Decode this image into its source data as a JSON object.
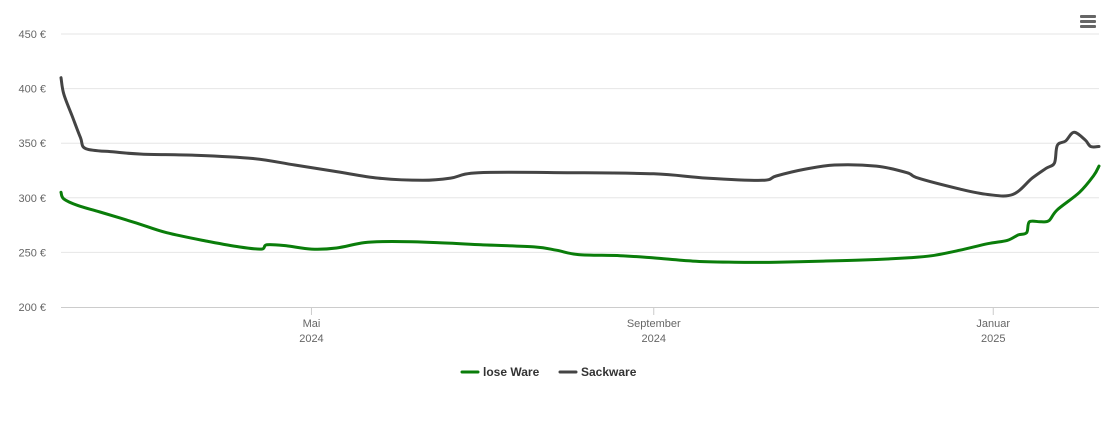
{
  "chart_data": {
    "type": "line",
    "title": "",
    "xlabel": "",
    "ylabel": "",
    "ylim": [
      200,
      450
    ],
    "y_ticks": [
      {
        "value": 200,
        "label": "200 €"
      },
      {
        "value": 250,
        "label": "250 €"
      },
      {
        "value": 300,
        "label": "300 €"
      },
      {
        "value": 350,
        "label": "350 €"
      },
      {
        "value": 400,
        "label": "400 €"
      },
      {
        "value": 450,
        "label": "450 €"
      }
    ],
    "x_range": [
      "2024-02-01",
      "2025-02-08"
    ],
    "x_ticks": [
      {
        "date": "2024-05-01",
        "line1": "Mai",
        "line2": "2024"
      },
      {
        "date": "2024-09-01",
        "line1": "September",
        "line2": "2024"
      },
      {
        "date": "2025-01-01",
        "line1": "Januar",
        "line2": "2025"
      }
    ],
    "grid": true,
    "legend_position": "bottom-center",
    "series": [
      {
        "name": "lose Ware",
        "color": "#0a7d0a",
        "points": [
          [
            "2024-02-01",
            305
          ],
          [
            "2024-02-02",
            299
          ],
          [
            "2024-02-07",
            293
          ],
          [
            "2024-02-15",
            287
          ],
          [
            "2024-02-28",
            277
          ],
          [
            "2024-03-10",
            268
          ],
          [
            "2024-03-25",
            260
          ],
          [
            "2024-04-05",
            255
          ],
          [
            "2024-04-13",
            253
          ],
          [
            "2024-04-15",
            257
          ],
          [
            "2024-04-22",
            256
          ],
          [
            "2024-05-01",
            253
          ],
          [
            "2024-05-10",
            254
          ],
          [
            "2024-05-20",
            259
          ],
          [
            "2024-05-30",
            260
          ],
          [
            "2024-06-15",
            259
          ],
          [
            "2024-07-01",
            257
          ],
          [
            "2024-07-20",
            255
          ],
          [
            "2024-07-28",
            252
          ],
          [
            "2024-08-05",
            248
          ],
          [
            "2024-08-20",
            247
          ],
          [
            "2024-09-01",
            245
          ],
          [
            "2024-09-15",
            242
          ],
          [
            "2024-09-30",
            241
          ],
          [
            "2024-10-15",
            241
          ],
          [
            "2024-11-01",
            242
          ],
          [
            "2024-11-15",
            243
          ],
          [
            "2024-12-01",
            245
          ],
          [
            "2024-12-10",
            247
          ],
          [
            "2024-12-20",
            252
          ],
          [
            "2024-12-30",
            258
          ],
          [
            "2025-01-06",
            261
          ],
          [
            "2025-01-10",
            266
          ],
          [
            "2025-01-13",
            268
          ],
          [
            "2025-01-14",
            278
          ],
          [
            "2025-01-18",
            278
          ],
          [
            "2025-01-21",
            279
          ],
          [
            "2025-01-24",
            289
          ],
          [
            "2025-02-01",
            305
          ],
          [
            "2025-02-06",
            320
          ],
          [
            "2025-02-08",
            329
          ]
        ]
      },
      {
        "name": "Sackware",
        "color": "#444444",
        "points": [
          [
            "2024-02-01",
            410
          ],
          [
            "2024-02-02",
            395
          ],
          [
            "2024-02-05",
            375
          ],
          [
            "2024-02-08",
            355
          ],
          [
            "2024-02-10",
            345
          ],
          [
            "2024-02-20",
            342
          ],
          [
            "2024-03-01",
            340
          ],
          [
            "2024-03-20",
            339
          ],
          [
            "2024-04-10",
            336
          ],
          [
            "2024-04-25",
            330
          ],
          [
            "2024-05-10",
            324
          ],
          [
            "2024-05-25",
            318
          ],
          [
            "2024-06-10",
            316
          ],
          [
            "2024-06-20",
            318
          ],
          [
            "2024-06-30",
            323
          ],
          [
            "2024-08-01",
            323
          ],
          [
            "2024-09-01",
            322
          ],
          [
            "2024-09-20",
            318
          ],
          [
            "2024-10-10",
            316
          ],
          [
            "2024-10-15",
            320
          ],
          [
            "2024-10-25",
            326
          ],
          [
            "2024-11-05",
            330
          ],
          [
            "2024-11-20",
            329
          ],
          [
            "2024-12-01",
            323
          ],
          [
            "2024-12-05",
            318
          ],
          [
            "2024-12-20",
            308
          ],
          [
            "2024-12-30",
            303
          ],
          [
            "2025-01-08",
            303
          ],
          [
            "2025-01-15",
            318
          ],
          [
            "2025-01-20",
            327
          ],
          [
            "2025-01-23",
            332
          ],
          [
            "2025-01-24",
            348
          ],
          [
            "2025-01-27",
            352
          ],
          [
            "2025-01-30",
            360
          ],
          [
            "2025-02-03",
            353
          ],
          [
            "2025-02-05",
            347
          ],
          [
            "2025-02-08",
            347
          ]
        ]
      }
    ]
  },
  "menu": {
    "icon": "hamburger-menu-icon",
    "color": "#666666"
  }
}
